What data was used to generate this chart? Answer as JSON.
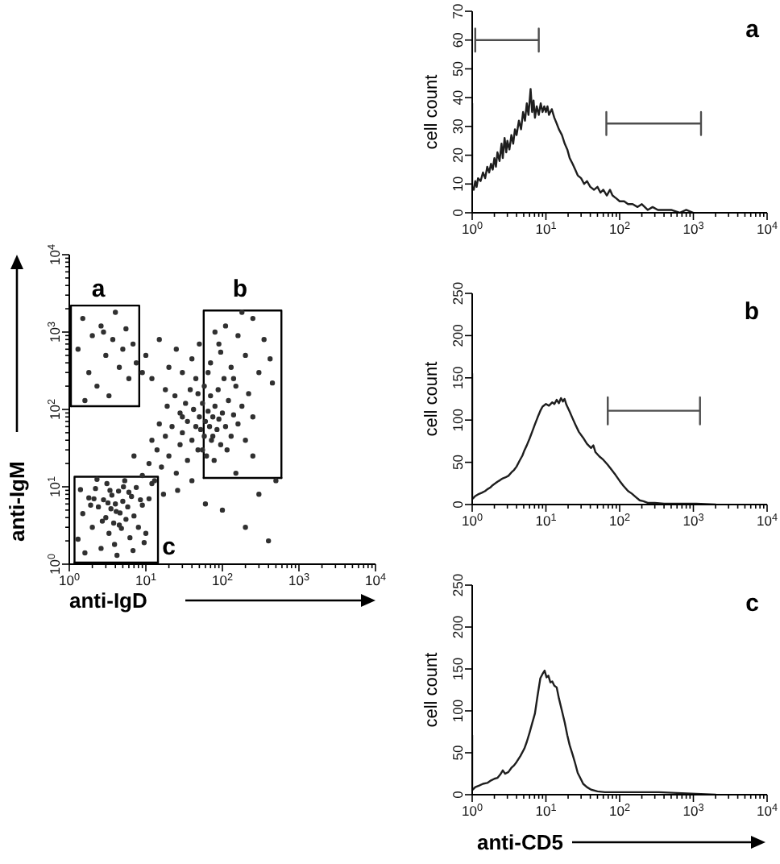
{
  "chart_data": [
    {
      "type": "scatter",
      "xlabel": "anti-IgD",
      "ylabel": "anti-IgM",
      "log": "xy",
      "xlim": [
        1,
        10000
      ],
      "ylim": [
        1,
        10000
      ],
      "marker": "circle",
      "xticks": [
        {
          "value": 1,
          "label": "10$^{0}$"
        },
        {
          "value": 2,
          "label": null
        },
        {
          "value": 3,
          "label": null
        },
        {
          "value": 4,
          "label": null
        },
        {
          "value": 5,
          "label": null
        },
        {
          "value": 6,
          "label": null
        },
        {
          "value": 7,
          "label": null
        },
        {
          "value": 8,
          "label": null
        },
        {
          "value": 9,
          "label": null
        },
        {
          "value": 10,
          "label": "10$^{1}$"
        },
        {
          "value": 20,
          "label": null
        },
        {
          "value": 30,
          "label": null
        },
        {
          "value": 40,
          "label": null
        },
        {
          "value": 50,
          "label": null
        },
        {
          "value": 60,
          "label": null
        },
        {
          "value": 70,
          "label": null
        },
        {
          "value": 80,
          "label": null
        },
        {
          "value": 90,
          "label": null
        },
        {
          "value": 100,
          "label": "10$^{2}$"
        },
        {
          "value": 200,
          "label": null
        },
        {
          "value": 300,
          "label": null
        },
        {
          "value": 400,
          "label": null
        },
        {
          "value": 500,
          "label": null
        },
        {
          "value": 600,
          "label": null
        },
        {
          "value": 700,
          "label": null
        },
        {
          "value": 800,
          "label": null
        },
        {
          "value": 900,
          "label": null
        },
        {
          "value": 1000,
          "label": "10$^{3}$"
        },
        {
          "value": 2000,
          "label": null
        },
        {
          "value": 3000,
          "label": null
        },
        {
          "value": 4000,
          "label": null
        },
        {
          "value": 5000,
          "label": null
        },
        {
          "value": 6000,
          "label": null
        },
        {
          "value": 7000,
          "label": null
        },
        {
          "value": 8000,
          "label": null
        },
        {
          "value": 9000,
          "label": null
        },
        {
          "value": 10000,
          "label": "10$^{4}$"
        }
      ],
      "yticks": [
        {
          "value": 1,
          "label": "10$^{0}$"
        },
        {
          "value": 2,
          "label": null
        },
        {
          "value": 3,
          "label": null
        },
        {
          "value": 4,
          "label": null
        },
        {
          "value": 5,
          "label": null
        },
        {
          "value": 6,
          "label": null
        },
        {
          "value": 7,
          "label": null
        },
        {
          "value": 8,
          "label": null
        },
        {
          "value": 9,
          "label": null
        },
        {
          "value": 10,
          "label": "10$^{1}$"
        },
        {
          "value": 20,
          "label": null
        },
        {
          "value": 30,
          "label": null
        },
        {
          "value": 40,
          "label": null
        },
        {
          "value": 50,
          "label": null
        },
        {
          "value": 60,
          "label": null
        },
        {
          "value": 70,
          "label": null
        },
        {
          "value": 80,
          "label": null
        },
        {
          "value": 90,
          "label": null
        },
        {
          "value": 100,
          "label": "10$^{2}$"
        },
        {
          "value": 200,
          "label": null
        },
        {
          "value": 300,
          "label": null
        },
        {
          "value": 400,
          "label": null
        },
        {
          "value": 500,
          "label": null
        },
        {
          "value": 600,
          "label": null
        },
        {
          "value": 700,
          "label": null
        },
        {
          "value": 800,
          "label": null
        },
        {
          "value": 900,
          "label": null
        },
        {
          "value": 1000,
          "label": "10$^{3}$"
        },
        {
          "value": 2000,
          "label": null
        },
        {
          "value": 3000,
          "label": null
        },
        {
          "value": 4000,
          "label": null
        },
        {
          "value": 5000,
          "label": null
        },
        {
          "value": 6000,
          "label": null
        },
        {
          "value": 7000,
          "label": null
        },
        {
          "value": 8000,
          "label": null
        },
        {
          "value": 9000,
          "label": null
        },
        {
          "value": 10000,
          "label": "10$^{4}$"
        }
      ],
      "annotations": [
        "a",
        "b",
        "c"
      ],
      "series": [
        {
          "color": "#303030",
          "x": [
            1.3,
            1.5,
            1.8,
            2.0,
            2.2,
            2.4,
            2.6,
            2.8,
            3.0,
            3.1,
            3.3,
            3.5,
            3.6,
            3.8,
            4.0,
            4.2,
            4.4,
            4.6,
            4.8,
            5.0,
            5.3,
            5.5,
            5.8,
            6.2,
            6.5,
            7.0,
            7.5,
            8.0,
            9.0,
            10,
            11,
            1.6,
            1.9,
            2.3,
            2.7,
            3.4,
            3.9,
            4.5,
            5.1,
            6.0,
            6.8,
            8.5,
            2.1,
            3.2,
            4.1,
            12,
            1.4,
            9.5,
            9,
            11,
            13,
            14,
            16,
            18,
            20,
            22,
            25,
            28,
            30,
            12,
            15,
            19,
            24,
            35,
            7,
            40,
            17,
            26,
            30,
            35,
            40,
            42,
            45,
            48,
            50,
            52,
            55,
            58,
            60,
            62,
            65,
            68,
            70,
            72,
            75,
            80,
            85,
            90,
            95,
            100,
            110,
            120,
            130,
            140,
            150,
            160,
            180,
            200,
            220,
            250,
            38,
            45,
            33,
            28,
            55,
            78,
            88,
            105,
            65,
            115,
            48,
            58,
            75,
            70,
            90,
            110,
            130,
            160,
            200,
            250,
            300,
            350,
            420,
            80,
            180,
            140,
            450,
            95,
            1.3,
            1.5,
            1.8,
            2.0,
            2.3,
            2.6,
            3.0,
            3.3,
            3.7,
            4.0,
            4.5,
            5.0,
            5.5,
            6.0,
            6.8,
            7.5,
            2.8,
            1.6,
            10,
            12,
            15,
            20,
            25,
            30,
            40,
            18,
            50,
            9,
            100,
            150,
            200,
            300,
            400,
            60,
            500,
            250
          ],
          "values": [
            2.1,
            4.5,
            7.2,
            3.0,
            9.5,
            5.5,
            1.6,
            6.8,
            4.0,
            11,
            2.5,
            5.2,
            7.8,
            3.4,
            6.0,
            1.3,
            8.8,
            4.6,
            2.9,
            6.5,
            12,
            3.8,
            5.5,
            2.2,
            7.5,
            4.2,
            9.8,
            3.0,
            5.8,
            2.5,
            7.0,
            1.4,
            5.8,
            12.5,
            3.6,
            9.0,
            1.8,
            3.2,
            10,
            8.5,
            1.5,
            6.8,
            7.0,
            6.2,
            4.8,
            11,
            9.2,
            1.9,
            14,
            20,
            12,
            30,
            18,
            45,
            25,
            60,
            15,
            35,
            80,
            40,
            65,
            110,
            150,
            22,
            25,
            12,
            8,
            9,
            50,
            70,
            40,
            100,
            60,
            30,
            80,
            55,
            120,
            45,
            70,
            25,
            95,
            60,
            150,
            40,
            80,
            110,
            55,
            75,
            35,
            90,
            60,
            130,
            45,
            85,
            200,
            65,
            110,
            40,
            160,
            80,
            180,
            250,
            120,
            90,
            30,
            22,
            180,
            250,
            300,
            30,
            160,
            200,
            45,
            400,
            700,
            1200,
            350,
            900,
            500,
            1500,
            300,
            800,
            450,
            1000,
            1800,
            250,
            220,
            550,
            600,
            1500,
            300,
            900,
            200,
            1200,
            500,
            150,
            800,
            1800,
            350,
            600,
            1100,
            250,
            700,
            400,
            1000,
            130,
            500,
            250,
            800,
            350,
            600,
            300,
            450,
            180,
            700,
            300,
            5,
            15,
            3,
            8,
            2,
            6,
            12,
            25
          ]
        },
        {
          "type": "line",
          "color": "#000000",
          "marker": "none",
          "x": [
            1.05,
            1.05,
            8.2,
            8.2
          ],
          "values": [
            110,
            2200,
            2200,
            110
          ]
        },
        {
          "type": "line",
          "color": "#000000",
          "marker": "none",
          "x": [
            1.05,
            8.2
          ],
          "values": [
            110,
            110
          ]
        },
        {
          "type": "line",
          "color": "#000000",
          "marker": "none",
          "x": [
            57,
            57,
            590,
            590
          ],
          "values": [
            13,
            1900,
            1900,
            13
          ]
        },
        {
          "type": "line",
          "color": "#000000",
          "marker": "none",
          "x": [
            57,
            590
          ],
          "values": [
            13,
            13
          ]
        },
        {
          "type": "line",
          "color": "#000000",
          "marker": "none",
          "x": [
            1.17,
            1.17,
            14.4,
            14.4
          ],
          "values": [
            1.05,
            13.5,
            13.5,
            1.05
          ]
        },
        {
          "type": "line",
          "color": "#000000",
          "marker": "none",
          "x": [
            1.17,
            14.4
          ],
          "values": [
            1.05,
            1.05
          ]
        }
      ]
    },
    {
      "type": "line",
      "ylabel": "cell count",
      "log": "x",
      "xlim": [
        1,
        10000
      ],
      "ylim": [
        0,
        70
      ],
      "marker": "none",
      "line_style": "solid",
      "xticks": [
        {
          "value": 1,
          "label": "10$^{0}$"
        },
        {
          "value": 2,
          "label": null
        },
        {
          "value": 3,
          "label": null
        },
        {
          "value": 4,
          "label": null
        },
        {
          "value": 5,
          "label": null
        },
        {
          "value": 6,
          "label": null
        },
        {
          "value": 7,
          "label": null
        },
        {
          "value": 8,
          "label": null
        },
        {
          "value": 9,
          "label": null
        },
        {
          "value": 10,
          "label": "10$^{1}$"
        },
        {
          "value": 20,
          "label": null
        },
        {
          "value": 30,
          "label": null
        },
        {
          "value": 40,
          "label": null
        },
        {
          "value": 50,
          "label": null
        },
        {
          "value": 60,
          "label": null
        },
        {
          "value": 70,
          "label": null
        },
        {
          "value": 80,
          "label": null
        },
        {
          "value": 90,
          "label": null
        },
        {
          "value": 100,
          "label": "10$^{2}$"
        },
        {
          "value": 200,
          "label": null
        },
        {
          "value": 300,
          "label": null
        },
        {
          "value": 400,
          "label": null
        },
        {
          "value": 500,
          "label": null
        },
        {
          "value": 600,
          "label": null
        },
        {
          "value": 700,
          "label": null
        },
        {
          "value": 800,
          "label": null
        },
        {
          "value": 900,
          "label": null
        },
        {
          "value": 1000,
          "label": "10$^{3}$"
        },
        {
          "value": 2000,
          "label": null
        },
        {
          "value": 3000,
          "label": null
        },
        {
          "value": 4000,
          "label": null
        },
        {
          "value": 5000,
          "label": null
        },
        {
          "value": 6000,
          "label": null
        },
        {
          "value": 7000,
          "label": null
        },
        {
          "value": 8000,
          "label": null
        },
        {
          "value": 9000,
          "label": null
        },
        {
          "value": 10000,
          "label": "10$^{4}$"
        }
      ],
      "yticks": [
        0,
        10,
        20,
        30,
        40,
        50,
        60,
        70
      ],
      "annotations": [
        "a"
      ],
      "series": [
        {
          "color": "#1e1e1e",
          "x": [
            1,
            1,
            1.05,
            1.1,
            1.15,
            1.2,
            1.3,
            1.4,
            1.5,
            1.6,
            1.7,
            1.8,
            1.9,
            2.0,
            2.1,
            2.2,
            2.35,
            2.5,
            2.6,
            2.75,
            2.9,
            3.0,
            3.2,
            3.4,
            3.6,
            3.8,
            4.0,
            4.3,
            4.6,
            4.9,
            5.2,
            5.5,
            5.8,
            6.2,
            6.5,
            6.8,
            7.1,
            7.5,
            8.0,
            8.5,
            9.0,
            9.5,
            10,
            10.5,
            11,
            12,
            13,
            14,
            15,
            16.5,
            18,
            19.5,
            21,
            23,
            25,
            27,
            30,
            33,
            36,
            40,
            45,
            50,
            55,
            60,
            67,
            74,
            80,
            90,
            100,
            115,
            130,
            150,
            175,
            200,
            240,
            280,
            330,
            400,
            500,
            650,
            800,
            1000
          ],
          "values": [
            38,
            9,
            8,
            11,
            9,
            12,
            11,
            14,
            12,
            16,
            14,
            17,
            15,
            19,
            16,
            21,
            18,
            24,
            19,
            26,
            21,
            25,
            22,
            27,
            24,
            29,
            27,
            32,
            29,
            35,
            32,
            38,
            34,
            43,
            35,
            39,
            33,
            37,
            34,
            38,
            35,
            37,
            35,
            37,
            34,
            36,
            33,
            31,
            29,
            27,
            24,
            22,
            19,
            17,
            15,
            13,
            12,
            10,
            11,
            9,
            8,
            9,
            7,
            8,
            6,
            8,
            6,
            5,
            4,
            4,
            3,
            3,
            2,
            3,
            1,
            2,
            1,
            1,
            1,
            0,
            1,
            0
          ]
        },
        {
          "color": "#4d4d4d",
          "x": [
            1.1,
            1.1,
            1.1,
            8,
            8,
            8
          ],
          "values": [
            64,
            56,
            60,
            60,
            64,
            56
          ]
        },
        {
          "color": "#4d4d4d",
          "x": [
            66,
            66,
            66,
            1270,
            1270,
            1270
          ],
          "values": [
            35,
            27,
            31,
            31,
            35,
            27
          ]
        }
      ]
    },
    {
      "type": "line",
      "ylabel": "cell count",
      "log": "x",
      "xlim": [
        1,
        10000
      ],
      "ylim": [
        0,
        250
      ],
      "marker": "none",
      "line_style": "solid",
      "xticks": [
        {
          "value": 1,
          "label": "10$^{0}$"
        },
        {
          "value": 2,
          "label": null
        },
        {
          "value": 3,
          "label": null
        },
        {
          "value": 4,
          "label": null
        },
        {
          "value": 5,
          "label": null
        },
        {
          "value": 6,
          "label": null
        },
        {
          "value": 7,
          "label": null
        },
        {
          "value": 8,
          "label": null
        },
        {
          "value": 9,
          "label": null
        },
        {
          "value": 10,
          "label": "10$^{1}$"
        },
        {
          "value": 20,
          "label": null
        },
        {
          "value": 30,
          "label": null
        },
        {
          "value": 40,
          "label": null
        },
        {
          "value": 50,
          "label": null
        },
        {
          "value": 60,
          "label": null
        },
        {
          "value": 70,
          "label": null
        },
        {
          "value": 80,
          "label": null
        },
        {
          "value": 90,
          "label": null
        },
        {
          "value": 100,
          "label": "10$^{2}$"
        },
        {
          "value": 200,
          "label": null
        },
        {
          "value": 300,
          "label": null
        },
        {
          "value": 400,
          "label": null
        },
        {
          "value": 500,
          "label": null
        },
        {
          "value": 600,
          "label": null
        },
        {
          "value": 700,
          "label": null
        },
        {
          "value": 800,
          "label": null
        },
        {
          "value": 900,
          "label": null
        },
        {
          "value": 1000,
          "label": "10$^{3}$"
        },
        {
          "value": 2000,
          "label": null
        },
        {
          "value": 3000,
          "label": null
        },
        {
          "value": 4000,
          "label": null
        },
        {
          "value": 5000,
          "label": null
        },
        {
          "value": 6000,
          "label": null
        },
        {
          "value": 7000,
          "label": null
        },
        {
          "value": 8000,
          "label": null
        },
        {
          "value": 9000,
          "label": null
        },
        {
          "value": 10000,
          "label": "10$^{4}$"
        }
      ],
      "yticks": [
        0,
        50,
        100,
        150,
        200,
        250
      ],
      "annotations": [
        "b"
      ],
      "series": [
        {
          "color": "#1e1e1e",
          "x": [
            1,
            1,
            1.02,
            1.1,
            1.2,
            1.35,
            1.5,
            1.6,
            1.75,
            1.9,
            2.05,
            2.2,
            2.4,
            2.6,
            2.8,
            3.1,
            3.4,
            3.7,
            4.0,
            4.4,
            4.8,
            5.1,
            5.5,
            6.0,
            6.5,
            7.1,
            7.7,
            8.4,
            9.0,
            10,
            11,
            12.2,
            13,
            14,
            15,
            16,
            17,
            17.9,
            19,
            21,
            23,
            25,
            28,
            32,
            36,
            41,
            44,
            47,
            53,
            60,
            69,
            78,
            88,
            100,
            113,
            130,
            146,
            165,
            187,
            210,
            240,
            300,
            400,
            600,
            1090,
            2000
          ],
          "values": [
            155,
            8,
            7,
            10,
            12,
            14,
            16,
            18,
            20,
            23,
            25,
            27,
            29,
            31,
            32,
            34,
            38,
            41,
            45,
            52,
            58,
            64,
            70,
            78,
            86,
            95,
            103,
            111,
            116,
            119,
            117,
            121,
            119,
            124,
            120,
            126,
            122,
            125,
            118,
            110,
            102,
            95,
            86,
            79,
            72,
            67,
            70,
            62,
            57,
            53,
            47,
            41,
            35,
            28,
            22,
            16,
            13,
            9,
            5,
            4,
            2,
            2,
            1,
            1,
            1,
            0
          ]
        },
        {
          "color": "#4d4d4d",
          "x": [
            69,
            69,
            69,
            1230,
            1230,
            1230
          ],
          "values": [
            127,
            95,
            111,
            111,
            127,
            95
          ]
        }
      ]
    },
    {
      "type": "line",
      "xlabel": "anti-CD5",
      "ylabel": "cell count",
      "log": "x",
      "xlim": [
        1,
        10000
      ],
      "ylim": [
        0,
        250
      ],
      "marker": "none",
      "line_style": "solid",
      "xticks": [
        {
          "value": 1,
          "label": "10$^{0}$"
        },
        {
          "value": 2,
          "label": null
        },
        {
          "value": 3,
          "label": null
        },
        {
          "value": 4,
          "label": null
        },
        {
          "value": 5,
          "label": null
        },
        {
          "value": 6,
          "label": null
        },
        {
          "value": 7,
          "label": null
        },
        {
          "value": 8,
          "label": null
        },
        {
          "value": 9,
          "label": null
        },
        {
          "value": 10,
          "label": "10$^{1}$"
        },
        {
          "value": 20,
          "label": null
        },
        {
          "value": 30,
          "label": null
        },
        {
          "value": 40,
          "label": null
        },
        {
          "value": 50,
          "label": null
        },
        {
          "value": 60,
          "label": null
        },
        {
          "value": 70,
          "label": null
        },
        {
          "value": 80,
          "label": null
        },
        {
          "value": 90,
          "label": null
        },
        {
          "value": 100,
          "label": "10$^{2}$"
        },
        {
          "value": 200,
          "label": null
        },
        {
          "value": 300,
          "label": null
        },
        {
          "value": 400,
          "label": null
        },
        {
          "value": 500,
          "label": null
        },
        {
          "value": 600,
          "label": null
        },
        {
          "value": 700,
          "label": null
        },
        {
          "value": 800,
          "label": null
        },
        {
          "value": 900,
          "label": null
        },
        {
          "value": 1000,
          "label": "10$^{3}$"
        },
        {
          "value": 2000,
          "label": null
        },
        {
          "value": 3000,
          "label": null
        },
        {
          "value": 4000,
          "label": null
        },
        {
          "value": 5000,
          "label": null
        },
        {
          "value": 6000,
          "label": null
        },
        {
          "value": 7000,
          "label": null
        },
        {
          "value": 8000,
          "label": null
        },
        {
          "value": 9000,
          "label": null
        },
        {
          "value": 10000,
          "label": "10$^{4}$"
        }
      ],
      "yticks": [
        0,
        50,
        100,
        150,
        200,
        250
      ],
      "annotations": [
        "c"
      ],
      "series": [
        {
          "color": "#1e1e1e",
          "x": [
            1,
            1,
            1.02,
            1.1,
            1.25,
            1.4,
            1.6,
            1.8,
            2.0,
            2.2,
            2.4,
            2.6,
            2.8,
            3.1,
            3.4,
            3.7,
            4.0,
            4.5,
            5.1,
            5.5,
            6.0,
            6.5,
            7.1,
            7.7,
            8.4,
            9.0,
            9.6,
            10.2,
            10.8,
            11.5,
            12.2,
            13,
            14,
            15,
            16.5,
            18,
            19.5,
            21,
            23,
            25,
            27,
            30,
            32,
            36,
            41,
            50,
            63,
            90,
            123,
            200,
            340,
            600,
            1090,
            2000
          ],
          "values": [
            71,
            6,
            6,
            9,
            11,
            13,
            14,
            17,
            19,
            20,
            24,
            29,
            25,
            27,
            32,
            35,
            39,
            46,
            55,
            63,
            74,
            85,
            97,
            118,
            139,
            144,
            148,
            140,
            142,
            134,
            135,
            130,
            128,
            115,
            100,
            86,
            71,
            59,
            48,
            37,
            26,
            18,
            13,
            9,
            6,
            4,
            3,
            3,
            3,
            3,
            3,
            2,
            1,
            0
          ]
        }
      ]
    }
  ]
}
